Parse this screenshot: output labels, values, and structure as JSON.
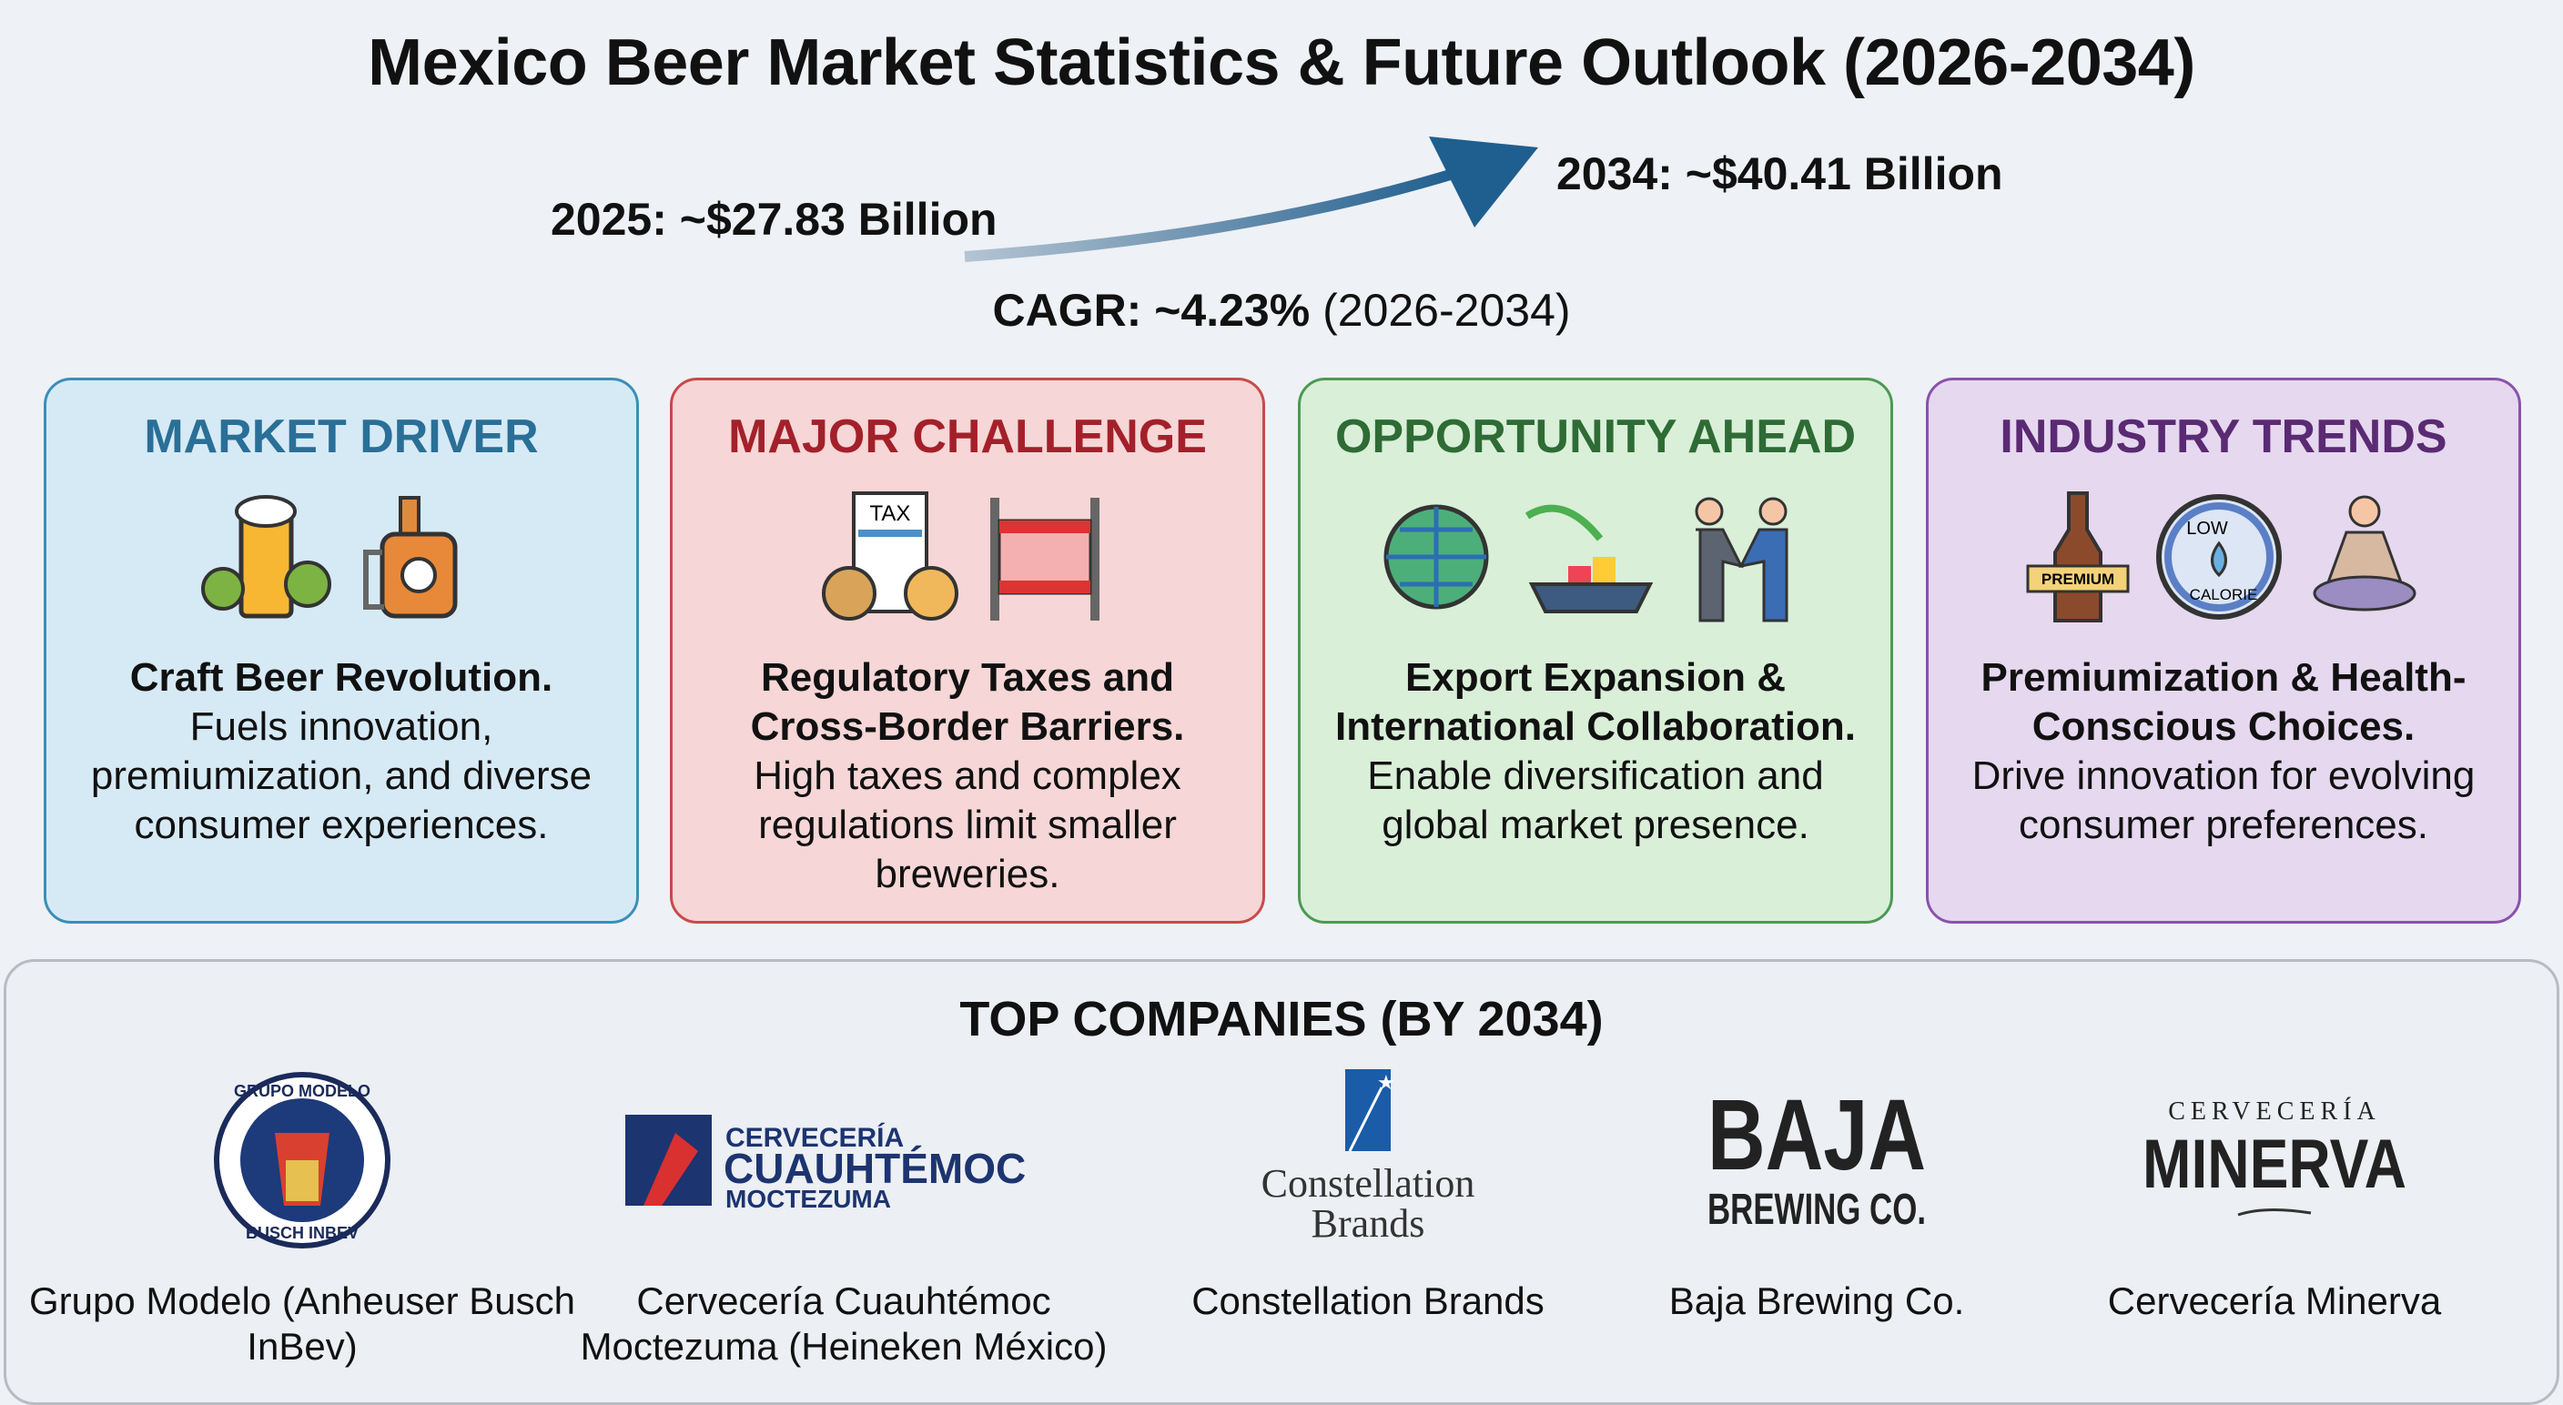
{
  "title": "Mexico Beer Market Statistics & Future Outlook (2026-2034)",
  "stats": {
    "start": "2025: ~$27.83 Billion",
    "end": "2034: ~$40.41 Billion",
    "cagr_label": "CAGR: ~4.23%",
    "cagr_period": "(2026-2034)"
  },
  "cards": [
    {
      "title": "MARKET DRIVER",
      "lead": "Craft Beer Revolution.",
      "body": "Fuels innovation, premiumization, and diverse consumer experiences.",
      "color": "#2a6f97",
      "bg": "#d6eaf6"
    },
    {
      "title": "MAJOR CHALLENGE",
      "lead": "Regulatory Taxes and Cross-Border Barriers.",
      "body": "High taxes and complex regulations limit smaller breweries.",
      "color": "#a3202a",
      "bg": "#f6d6d6"
    },
    {
      "title": "OPPORTUNITY AHEAD",
      "lead": "Export Expansion & International Collaboration.",
      "body": "Enable diversification and global market presence.",
      "color": "#2e6b35",
      "bg": "#d9efd8"
    },
    {
      "title": "INDUSTRY TRENDS",
      "lead": "Premiumization & Health-Conscious Choices.",
      "body": "Drive innovation for evolving consumer preferences.",
      "color": "#5a2a73",
      "bg": "#e5d8ef"
    }
  ],
  "icon_text": {
    "tax": "TAX",
    "premium": "PREMIUM",
    "low": "LOW",
    "calorie": "CALORIE"
  },
  "companies_title": "TOP COMPANIES (BY 2034)",
  "companies": [
    {
      "name": "Grupo Modelo (Anheuser Busch InBev)",
      "logo_top": "GRUPO MODELO",
      "logo_bottom": "BUSCH INBEV"
    },
    {
      "name": "Cervecería Cuauhtémoc Moctezuma (Heineken México)",
      "logo_l1": "CERVECERÍA",
      "logo_l2": "CUAUHTÉMOC",
      "logo_l3": "MOCTEZUMA"
    },
    {
      "name": "Constellation Brands",
      "logo_l1": "Constellation",
      "logo_l2": "Brands"
    },
    {
      "name": "Baja Brewing Co.",
      "logo_l1": "BAJA",
      "logo_l2": "BREWING CO."
    },
    {
      "name": "Cervecería Minerva",
      "logo_l1": "CERVECERÍA",
      "logo_l2": "MINERVA"
    }
  ]
}
